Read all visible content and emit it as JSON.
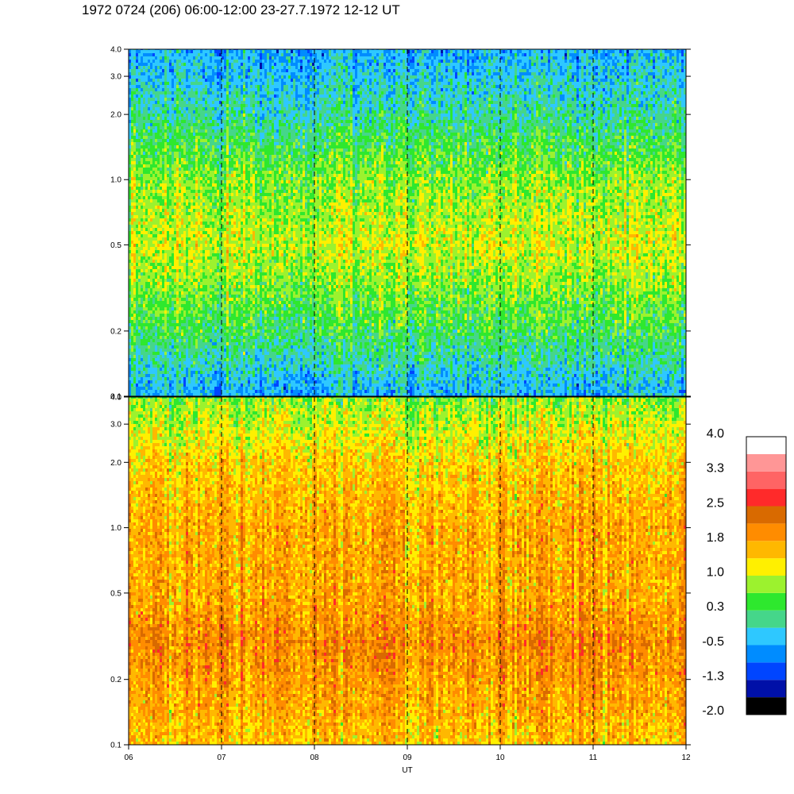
{
  "title": "1972 0724 (206) 06:00-12:00 23-27.7.1972  12-12 UT",
  "chart_data": [
    {
      "type": "heatmap",
      "panel": "top",
      "x_range_ut_hours": [
        6,
        12
      ],
      "y_scale": "log",
      "ylim": [
        0.1,
        4.0
      ],
      "y_tick_values": [
        0.1,
        0.2,
        0.5,
        1.0,
        2.0,
        3.0,
        4.0
      ],
      "y_tick_labels": [
        "0.1",
        "0.2",
        "0.5",
        "1.0",
        "2.0",
        "3.0",
        "4.0"
      ],
      "dashed_vertical_lines_at_ut": [
        7,
        8,
        9,
        10,
        11
      ],
      "dominant_levels_by_frequency": [
        {
          "y": 0.1,
          "level": -0.5
        },
        {
          "y": 0.2,
          "level": 0.3
        },
        {
          "y": 0.5,
          "level": 1.0
        },
        {
          "y": 1.0,
          "level": 0.7
        },
        {
          "y": 2.0,
          "level": 0.0
        },
        {
          "y": 4.0,
          "level": -0.5
        }
      ]
    },
    {
      "type": "heatmap",
      "panel": "bottom",
      "x_range_ut_hours": [
        6,
        12
      ],
      "x_tick_labels": [
        "06",
        "07",
        "08",
        "09",
        "10",
        "11",
        "12"
      ],
      "xlabel": "UT",
      "y_scale": "log",
      "ylim": [
        0.1,
        4.0
      ],
      "y_tick_values": [
        0.1,
        0.2,
        0.5,
        1.0,
        2.0,
        3.0,
        4.0
      ],
      "y_tick_labels": [
        "0.1",
        "0.2",
        "0.5",
        "1.0",
        "2.0",
        "3.0",
        "4.0"
      ],
      "dashed_vertical_lines_at_ut": [
        7,
        8,
        9,
        10,
        11
      ],
      "dominant_levels_by_frequency": [
        {
          "y": 0.1,
          "level": 1.5
        },
        {
          "y": 0.3,
          "level": 2.0
        },
        {
          "y": 0.5,
          "level": 1.7
        },
        {
          "y": 1.0,
          "level": 1.7
        },
        {
          "y": 2.0,
          "level": 1.4
        },
        {
          "y": 4.0,
          "level": 0.7
        }
      ]
    }
  ],
  "colorbar": {
    "labels": [
      "4.0",
      "3.3",
      "2.5",
      "1.8",
      "1.0",
      "0.3",
      "-0.5",
      "-1.3",
      "-2.0"
    ],
    "colors": [
      "#000000",
      "#0010a8",
      "#0045ff",
      "#008cff",
      "#2ec8ff",
      "#45d68a",
      "#2ee82e",
      "#9cf22e",
      "#fff000",
      "#ffb800",
      "#ff8c00",
      "#d96a00",
      "#ff2a2a",
      "#ff6464",
      "#ff9696",
      "#ffffff"
    ],
    "range": [
      -2.0,
      4.0
    ]
  }
}
